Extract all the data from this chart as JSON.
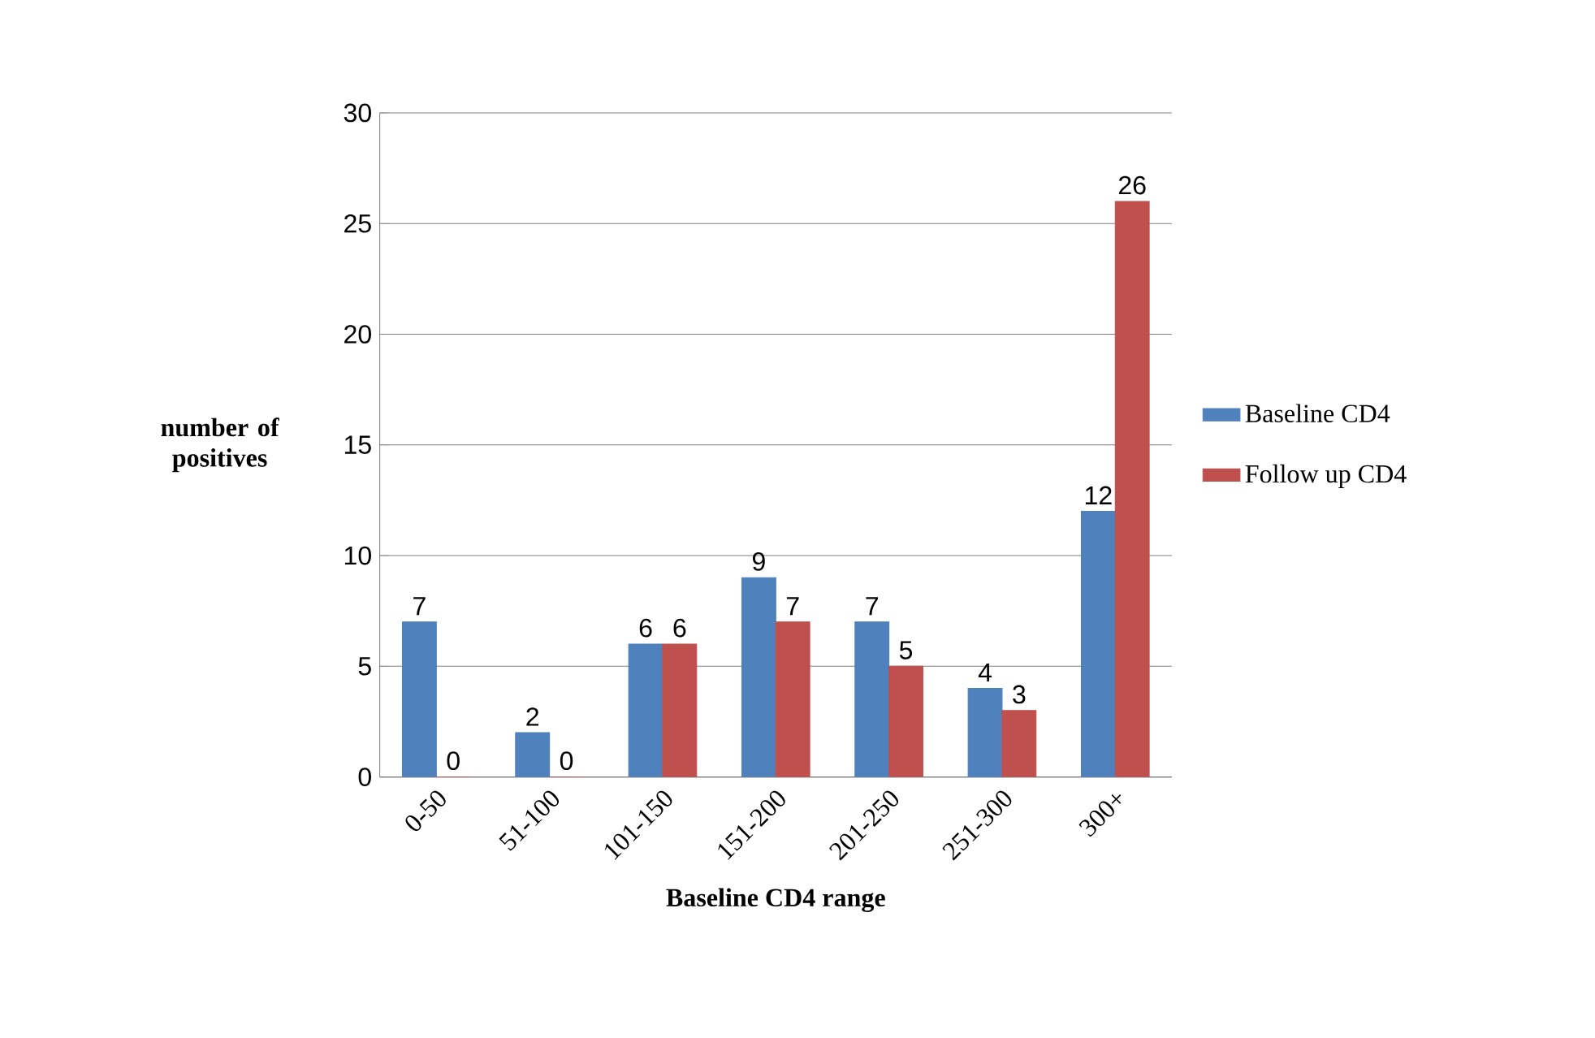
{
  "chart_data": {
    "type": "bar",
    "xlabel": "Baseline CD4 range",
    "ylabel": "number of positives",
    "categories": [
      "0-50",
      "51-100",
      "101-150",
      "151-200",
      "201-250",
      "251-300",
      "300+"
    ],
    "series": [
      {
        "name": "Baseline CD4",
        "color": "#4f81bd",
        "values": [
          7,
          2,
          6,
          9,
          7,
          4,
          12
        ]
      },
      {
        "name": "Follow up CD4",
        "color": "#c0504d",
        "values": [
          0,
          0,
          6,
          7,
          5,
          3,
          26
        ]
      }
    ],
    "ylim": [
      0,
      30
    ],
    "yticks": [
      0,
      5,
      10,
      15,
      20,
      25,
      30
    ],
    "grid": "y",
    "legend": "right",
    "data_labels": true
  }
}
